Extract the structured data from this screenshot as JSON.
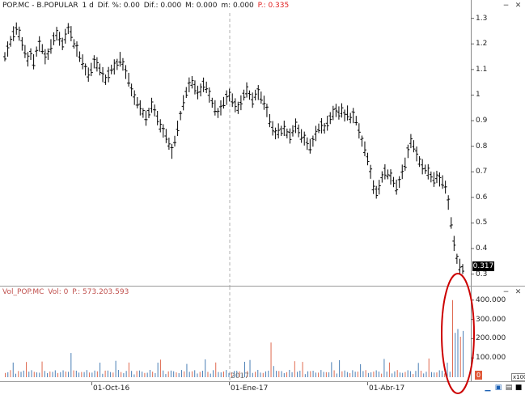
{
  "price_header": {
    "symbol": "POP.MC - B.POPULAR",
    "period": "1 d",
    "dif_pct": "Dif. %: 0.00",
    "dif": "Dif.: 0.000",
    "m": "M: 0.000",
    "m2": "m: 0.000",
    "price": "P.: 0.335"
  },
  "volume_header": {
    "name": "Vol_POP.MC",
    "vol": "Vol: 0",
    "price": "P.: 573.203.593"
  },
  "price_axis": {
    "ticks": [
      "1.3",
      "1.2",
      "1.1",
      "1",
      "0.9",
      "0.8",
      "0.7",
      "0.6",
      "0.5",
      "0.4",
      "0.3"
    ],
    "last": "0.317"
  },
  "volume_axis": {
    "ticks": [
      "400.000",
      "300.000",
      "200.000",
      "100.000"
    ],
    "zero": "0",
    "scale": "x100"
  },
  "time_axis": {
    "labels": [
      "01-Oct-16",
      "2017",
      "01-Ene-17",
      "01-Abr-17"
    ]
  },
  "controls": {
    "hide": "−",
    "close": "✕",
    "expand": "□"
  },
  "colors": {
    "up_volume": "#4a7fb5",
    "down_volume": "#e06a50",
    "bar": "#000000",
    "annotation": "#cc0000",
    "separator": "#b0b0b0"
  },
  "chart_data": {
    "type": "bar",
    "price_series": {
      "name": "POP.MC",
      "values": [
        1.15,
        1.18,
        1.21,
        1.24,
        1.26,
        1.24,
        1.2,
        1.17,
        1.14,
        1.16,
        1.13,
        1.17,
        1.2,
        1.18,
        1.15,
        1.16,
        1.19,
        1.22,
        1.24,
        1.22,
        1.2,
        1.23,
        1.26,
        1.24,
        1.2,
        1.18,
        1.15,
        1.13,
        1.1,
        1.08,
        1.1,
        1.13,
        1.12,
        1.1,
        1.08,
        1.06,
        1.08,
        1.1,
        1.11,
        1.12,
        1.14,
        1.12,
        1.09,
        1.06,
        1.02,
        0.99,
        0.97,
        0.95,
        0.93,
        0.91,
        0.93,
        0.96,
        0.94,
        0.91,
        0.88,
        0.86,
        0.84,
        0.81,
        0.78,
        0.82,
        0.87,
        0.92,
        0.97,
        1.01,
        1.04,
        1.05,
        1.03,
        1.01,
        1.02,
        1.04,
        1.03,
        1.0,
        0.97,
        0.95,
        0.93,
        0.95,
        0.97,
        0.99,
        1.0,
        0.98,
        0.96,
        0.95,
        0.97,
        1.0,
        1.02,
        1.0,
        0.98,
        1.0,
        1.01,
        0.99,
        0.97,
        0.94,
        0.9,
        0.87,
        0.85,
        0.86,
        0.86,
        0.87,
        0.85,
        0.84,
        0.86,
        0.88,
        0.86,
        0.84,
        0.83,
        0.81,
        0.8,
        0.82,
        0.85,
        0.87,
        0.88,
        0.87,
        0.89,
        0.91,
        0.93,
        0.94,
        0.93,
        0.94,
        0.92,
        0.93,
        0.91,
        0.92,
        0.9,
        0.86,
        0.82,
        0.79,
        0.75,
        0.7,
        0.64,
        0.62,
        0.64,
        0.68,
        0.7,
        0.69,
        0.68,
        0.66,
        0.64,
        0.66,
        0.7,
        0.73,
        0.78,
        0.82,
        0.8,
        0.77,
        0.74,
        0.72,
        0.71,
        0.7,
        0.68,
        0.67,
        0.68,
        0.67,
        0.66,
        0.64,
        0.58,
        0.5,
        0.42,
        0.36,
        0.33,
        0.32
      ],
      "ylim": [
        0.28,
        1.34
      ]
    },
    "volume_series": {
      "name": "Vol_POP.MC",
      "ylim": [
        0,
        420000
      ],
      "highlight_values": [
        400000,
        230000,
        250000,
        210000,
        240000
      ]
    }
  }
}
